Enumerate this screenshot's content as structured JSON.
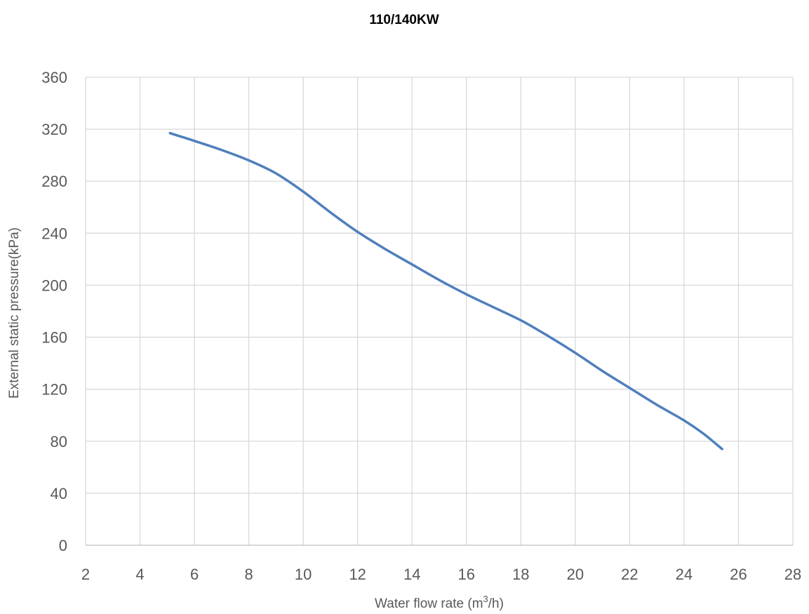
{
  "chart_data": {
    "type": "line",
    "title": "110/140KW",
    "xlabel": {
      "prefix": "Water flow rate (m",
      "superscript": "3",
      "suffix": "/h)"
    },
    "ylabel": "External static pressure(kPa)",
    "xlim": [
      2,
      28
    ],
    "ylim": [
      0,
      360
    ],
    "xticks": [
      2,
      4,
      6,
      8,
      10,
      12,
      14,
      16,
      18,
      20,
      22,
      24,
      26,
      28
    ],
    "yticks": [
      0,
      40,
      80,
      120,
      160,
      200,
      240,
      280,
      320,
      360
    ],
    "grid": true,
    "series": [
      {
        "color": "#4f7fbd",
        "x": [
          5.1,
          6,
          7,
          8,
          9,
          10,
          11,
          12,
          13,
          14,
          15,
          16,
          17,
          18,
          19,
          20,
          21,
          22,
          23,
          24,
          24.7,
          25.4
        ],
        "y": [
          317,
          311,
          304,
          296,
          286,
          272,
          256,
          241,
          228,
          216,
          204,
          193,
          183,
          173,
          161,
          148,
          134,
          121,
          108,
          96,
          86,
          74
        ]
      }
    ]
  }
}
